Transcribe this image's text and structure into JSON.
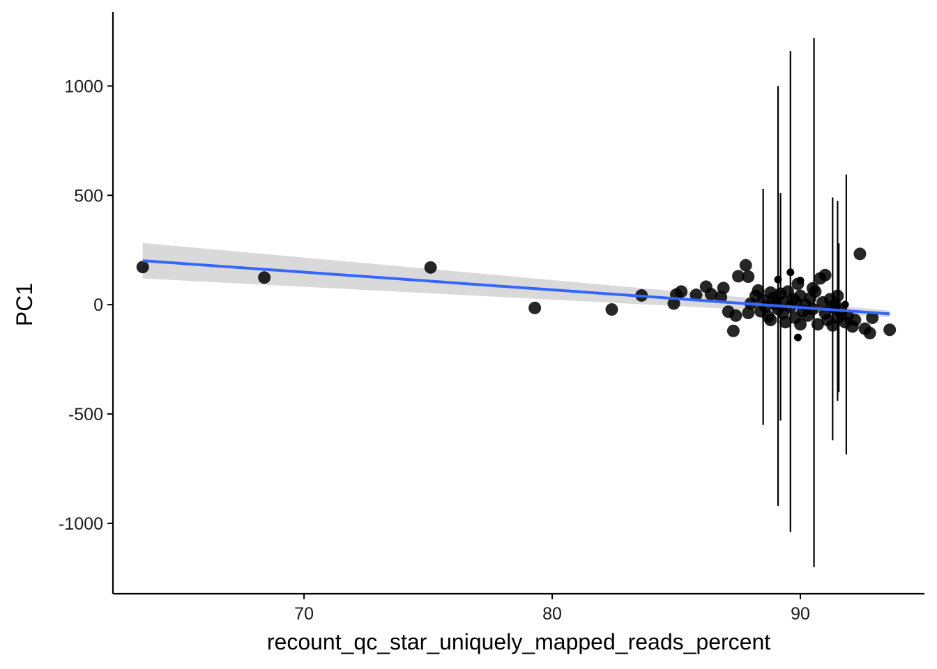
{
  "chart_data": {
    "type": "scatter",
    "title": "",
    "xlabel": "recount_qc_star_uniquely_mapped_reads_percent",
    "ylabel": "PC1",
    "xlim": [
      62.3,
      95.0
    ],
    "ylim": [
      -1322,
      1339
    ],
    "x_ticks": [
      70,
      80,
      90
    ],
    "x_tick_labels": [
      "70",
      "80",
      "90"
    ],
    "y_ticks": [
      -1000,
      -500,
      0,
      500,
      1000
    ],
    "y_tick_labels": [
      "-1000",
      "-500",
      "0",
      "500",
      "1000"
    ],
    "grid": false,
    "legend": "none",
    "colors": {
      "points": "#000000",
      "fit_line": "#3366FF",
      "ribbon": "#D9D9D9",
      "error_bars": "#000000",
      "axes": "#000000"
    },
    "points": [
      [
        63.5,
        172
      ],
      [
        68.4,
        124
      ],
      [
        75.1,
        170
      ],
      [
        79.3,
        -15
      ],
      [
        82.4,
        -22
      ],
      [
        83.6,
        42
      ],
      [
        84.9,
        5
      ],
      [
        85.0,
        46
      ],
      [
        85.2,
        60
      ],
      [
        85.8,
        45
      ],
      [
        86.2,
        82
      ],
      [
        86.4,
        48
      ],
      [
        86.8,
        35
      ],
      [
        86.9,
        76
      ],
      [
        87.1,
        -32
      ],
      [
        87.3,
        -120
      ],
      [
        87.4,
        -50
      ],
      [
        87.5,
        130
      ],
      [
        87.8,
        180
      ],
      [
        87.9,
        128
      ],
      [
        87.9,
        -38
      ],
      [
        88.0,
        5
      ],
      [
        88.2,
        40
      ],
      [
        88.3,
        65
      ],
      [
        88.4,
        -30
      ],
      [
        88.5,
        20
      ],
      [
        88.6,
        -10
      ],
      [
        88.7,
        -55
      ],
      [
        88.8,
        55
      ],
      [
        88.8,
        -70
      ],
      [
        88.9,
        30
      ],
      [
        89.0,
        5
      ],
      [
        89.1,
        -20
      ],
      [
        89.2,
        50
      ],
      [
        89.3,
        10
      ],
      [
        89.3,
        -40
      ],
      [
        89.4,
        -80
      ],
      [
        89.5,
        60
      ],
      [
        89.6,
        -10
      ],
      [
        89.7,
        25
      ],
      [
        89.8,
        -60
      ],
      [
        89.8,
        15
      ],
      [
        89.9,
        95
      ],
      [
        90.0,
        -90
      ],
      [
        90.0,
        40
      ],
      [
        90.1,
        -30
      ],
      [
        90.2,
        0
      ],
      [
        90.3,
        -50
      ],
      [
        90.4,
        30
      ],
      [
        90.5,
        75
      ],
      [
        90.5,
        -20
      ],
      [
        90.6,
        60
      ],
      [
        90.7,
        -90
      ],
      [
        90.8,
        120
      ],
      [
        90.9,
        10
      ],
      [
        91.0,
        135
      ],
      [
        91.0,
        -40
      ],
      [
        91.1,
        -70
      ],
      [
        91.2,
        25
      ],
      [
        91.3,
        -10
      ],
      [
        91.3,
        -95
      ],
      [
        91.4,
        0
      ],
      [
        91.5,
        40
      ],
      [
        91.5,
        -60
      ],
      [
        91.6,
        -30
      ],
      [
        91.8,
        -80
      ],
      [
        91.9,
        -50
      ],
      [
        92.1,
        -100
      ],
      [
        92.2,
        -70
      ],
      [
        92.4,
        232
      ],
      [
        92.6,
        -110
      ],
      [
        92.8,
        -130
      ],
      [
        92.9,
        -60
      ],
      [
        93.6,
        -115
      ]
    ],
    "small_points": [
      [
        89.1,
        115
      ],
      [
        89.6,
        148
      ],
      [
        90.0,
        110
      ],
      [
        89.9,
        -150
      ],
      [
        91.8,
        0
      ]
    ],
    "error_bars": [
      [
        88.5,
        -550,
        530
      ],
      [
        89.1,
        -920,
        1000
      ],
      [
        89.2,
        -530,
        510
      ],
      [
        89.6,
        -1040,
        1160
      ],
      [
        90.55,
        -1200,
        1220
      ],
      [
        91.3,
        -620,
        490
      ],
      [
        91.5,
        -440,
        475
      ],
      [
        91.55,
        -400,
        280
      ],
      [
        91.85,
        -685,
        595
      ]
    ],
    "fit": {
      "x": [
        63.5,
        93.6
      ],
      "y": [
        201,
        -42
      ],
      "ribbon_upper": [
        282,
        -27
      ],
      "ribbon_lower": [
        120,
        -57
      ]
    }
  }
}
